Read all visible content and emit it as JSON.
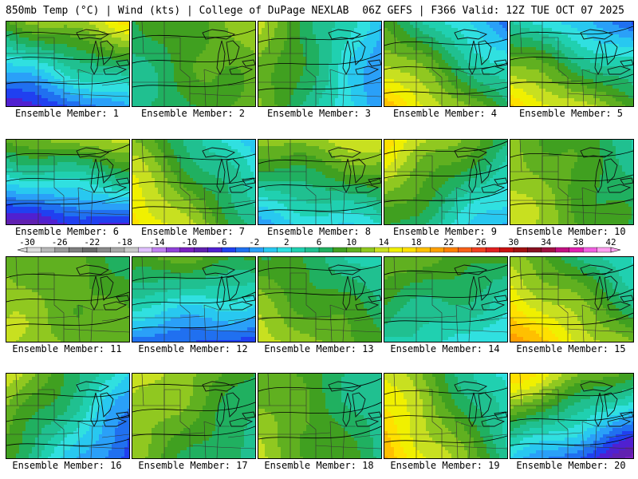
{
  "header": {
    "left": "850mb Temp (°C) | Wind (kts) | College of DuPage NEXLAB",
    "right": "06Z GEFS | F366 Valid: 12Z TUE OCT 07 2025"
  },
  "members": [
    {
      "label": "Ensemble Member: 1",
      "base": 10,
      "grad": [
        4,
        -10
      ]
    },
    {
      "label": "Ensemble Member: 2",
      "base": 15,
      "grad": [
        3,
        -1
      ]
    },
    {
      "label": "Ensemble Member: 3",
      "base": 11,
      "grad": [
        -8,
        -1
      ]
    },
    {
      "label": "Ensemble Member: 4",
      "base": 14,
      "grad": [
        -7,
        6
      ]
    },
    {
      "label": "Ensemble Member: 5",
      "base": 13,
      "grad": [
        -5,
        8
      ]
    },
    {
      "label": "Ensemble Member: 6",
      "base": 8,
      "grad": [
        2,
        -11
      ]
    },
    {
      "label": "Ensemble Member: 7",
      "base": 15,
      "grad": [
        -7,
        4
      ]
    },
    {
      "label": "Ensemble Member: 8",
      "base": 13,
      "grad": [
        2,
        -7
      ]
    },
    {
      "label": "Ensemble Member: 9",
      "base": 14,
      "grad": [
        -6,
        -5
      ]
    },
    {
      "label": "Ensemble Member: 10",
      "base": 16,
      "grad": [
        -4,
        1
      ]
    },
    {
      "label": "Ensemble Member: 11",
      "base": 17,
      "grad": [
        -2,
        1
      ]
    },
    {
      "label": "Ensemble Member: 12",
      "base": 8,
      "grad": [
        -1,
        -8
      ]
    },
    {
      "label": "Ensemble Member: 13",
      "base": 15,
      "grad": [
        -3,
        3
      ]
    },
    {
      "label": "Ensemble Member: 14",
      "base": 12,
      "grad": [
        -2,
        -4
      ]
    },
    {
      "label": "Ensemble Member: 15",
      "base": 18,
      "grad": [
        -6,
        5
      ]
    },
    {
      "label": "Ensemble Member: 16",
      "base": 10,
      "grad": [
        -8,
        -4
      ]
    },
    {
      "label": "Ensemble Member: 17",
      "base": 16,
      "grad": [
        -4,
        -2
      ]
    },
    {
      "label": "Ensemble Member: 18",
      "base": 15,
      "grad": [
        -4,
        1
      ]
    },
    {
      "label": "Ensemble Member: 19",
      "base": 17,
      "grad": [
        -8,
        3
      ]
    },
    {
      "label": "Ensemble Member: 20",
      "base": 10,
      "grad": [
        -6,
        -10
      ]
    }
  ],
  "colorbar": {
    "ticks": [
      "-30",
      "-26",
      "-22",
      "-18",
      "-14",
      "-10",
      "-6",
      "-2",
      "2",
      "6",
      "10",
      "14",
      "18",
      "22",
      "26",
      "30",
      "34",
      "38",
      "42"
    ],
    "min": -30,
    "max": 42,
    "step": 2,
    "colors": [
      "#dcdcdc",
      "#b8b8b8",
      "#9a9a9a",
      "#7e7e7e",
      "#6a6a6a",
      "#8a8a8a",
      "#a8a8a8",
      "#c8c8c8",
      "#e0c0ff",
      "#c080f0",
      "#9040d8",
      "#7a20c0",
      "#6020b0",
      "#5020d0",
      "#2040f0",
      "#2070f0",
      "#2aa0f8",
      "#28c8f0",
      "#30e0e0",
      "#20d0b0",
      "#20c090",
      "#20b060",
      "#40a020",
      "#60b020",
      "#90c820",
      "#c8e020",
      "#f0f000",
      "#ffe000",
      "#ffc000",
      "#ffa000",
      "#ff8000",
      "#f86018",
      "#f04020",
      "#e02020",
      "#c81010",
      "#a01010",
      "#881020",
      "#a01040",
      "#c01080",
      "#e020b0",
      "#f060e0",
      "#ffa0f0"
    ]
  }
}
